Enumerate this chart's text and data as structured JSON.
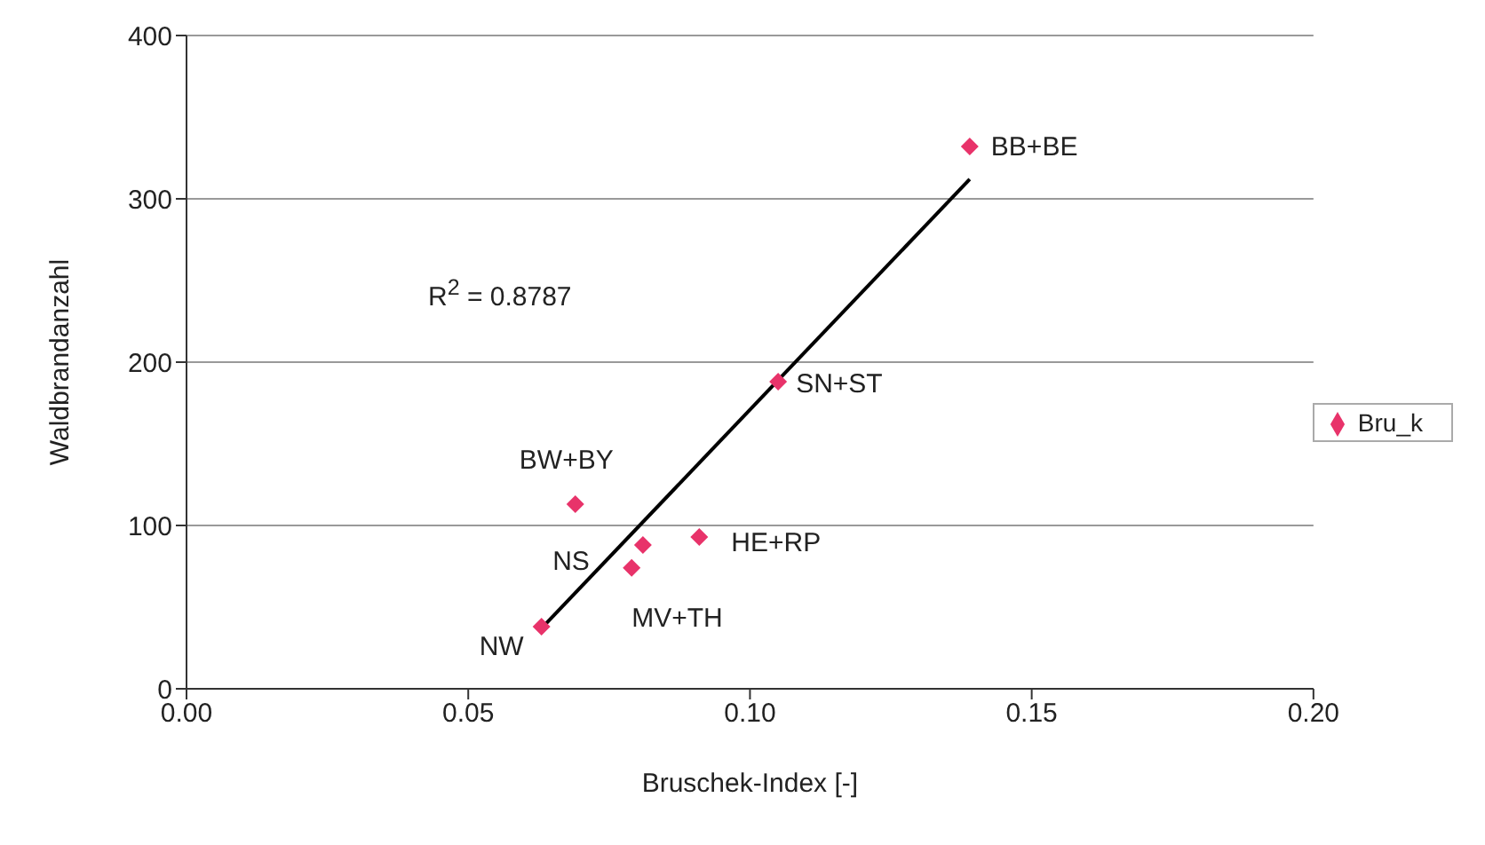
{
  "chart_data": {
    "type": "scatter",
    "xlabel": "Bruschek-Index [-]",
    "ylabel": "Waldbrandanzahl",
    "xlim": [
      0,
      0.2
    ],
    "xticks": [
      {
        "value": 0,
        "label": "0.00"
      },
      {
        "value": 0.05,
        "label": "0.05"
      },
      {
        "value": 0.1,
        "label": "0.10"
      },
      {
        "value": 0.15,
        "label": "0.15"
      },
      {
        "value": 0.2,
        "label": "0.20"
      }
    ],
    "ylim": [
      0,
      400
    ],
    "yticks": [
      0,
      100,
      200,
      300,
      400
    ],
    "grid": "y",
    "legend": "right",
    "series": [
      {
        "name": "Bru_k",
        "color": "#e8336a",
        "marker": "diamond",
        "x": [
          0.139,
          0.105,
          0.069,
          0.081,
          0.091,
          0.079,
          0.063
        ],
        "values": [
          332,
          188,
          113,
          88,
          93,
          74,
          38
        ]
      },
      {
        "type": "line",
        "color": "#000000",
        "marker": "none",
        "x": [
          0.063,
          0.139
        ],
        "values": [
          37,
          312
        ]
      }
    ],
    "annotations": [
      {
        "text": "BB+BE",
        "x": 0.139,
        "y": 332
      },
      {
        "text": "SN+ST",
        "x": 0.105,
        "y": 188
      },
      {
        "text": "BW+BY",
        "x": 0.069,
        "y": 113
      },
      {
        "text": "NS",
        "x": 0.081,
        "y": 88
      },
      {
        "text": "HE+RP",
        "x": 0.091,
        "y": 93
      },
      {
        "text": "MV+TH",
        "x": 0.079,
        "y": 74
      },
      {
        "text": "NW",
        "x": 0.063,
        "y": 38
      },
      "R$^{2}$ = 0.8787"
    ]
  }
}
